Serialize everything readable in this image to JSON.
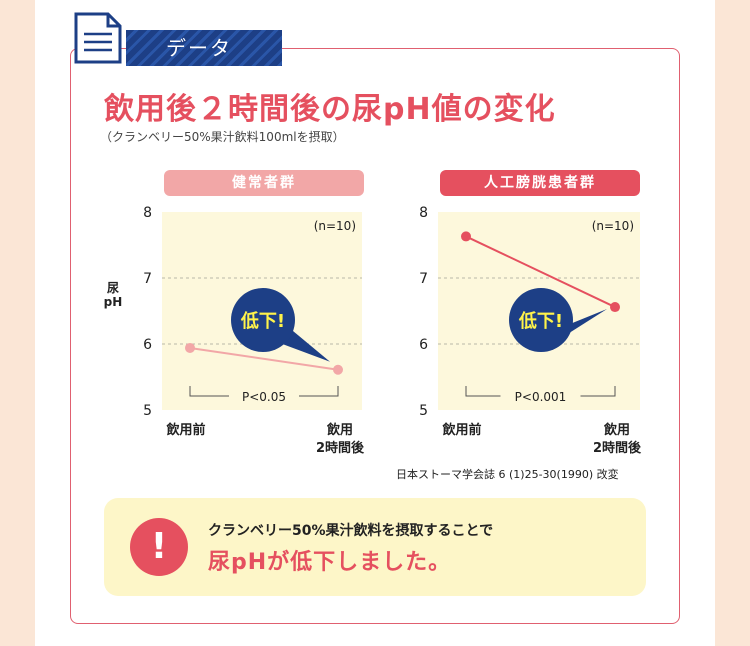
{
  "header": {
    "tag": "データ"
  },
  "title": "飲用後２時間後の尿pH値の変化",
  "subtitle": "（クランベリー50%果汁飲料100mlを摂取）",
  "source": "日本ストーマ学会誌 6 (1)25-30(1990) 改変",
  "bottom": {
    "line1": "クランベリー50%果汁飲料を摂取することで",
    "line2": "尿pHが低下しました。",
    "icon": "!"
  },
  "colors": {
    "accent": "#e5505f",
    "pill_left": "#f2a7a7",
    "navy": "#1d3f86",
    "plot_bg": "#fdf8dc"
  },
  "chart_data": [
    {
      "type": "line",
      "title": "健常者群",
      "ylabel": "尿\npH",
      "ylim": [
        5,
        8
      ],
      "yticks": [
        5,
        6,
        7,
        8
      ],
      "grid": true,
      "categories": [
        "飲用前",
        "飲用\n2時間後"
      ],
      "series": [
        {
          "values": [
            5.94,
            5.61
          ],
          "color": "#f2a7a7"
        }
      ],
      "annotations": {
        "n": "(n=10)",
        "callout": "低下!",
        "p": "P<0.05"
      }
    },
    {
      "type": "line",
      "title": "人工膀胱患者群",
      "ylabel": "",
      "ylim": [
        5,
        8
      ],
      "yticks": [
        5,
        6,
        7,
        8
      ],
      "grid": true,
      "categories": [
        "飲用前",
        "飲用\n2時間後"
      ],
      "series": [
        {
          "values": [
            7.63,
            6.56
          ],
          "color": "#e5505f"
        }
      ],
      "annotations": {
        "n": "(n=10)",
        "callout": "低下!",
        "p": "P<0.001"
      }
    }
  ]
}
